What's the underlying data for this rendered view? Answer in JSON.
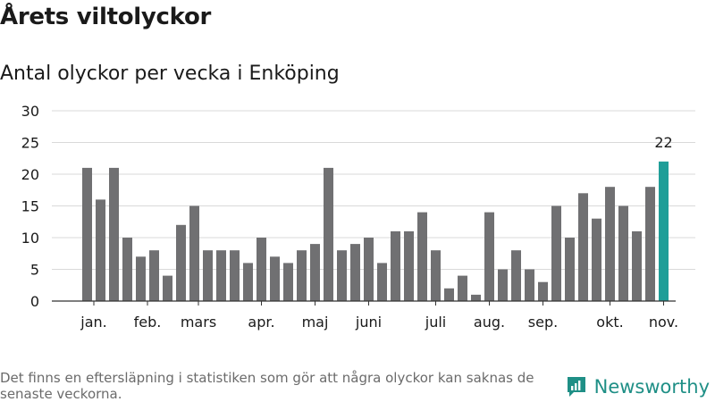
{
  "header": {
    "title": "Årets viltolyckor",
    "subtitle": "Antal olyckor per vecka i Enköping"
  },
  "footer": {
    "note": "Det finns en eftersläpning i statistiken som gör att några olyckor kan saknas de senaste veckorna.",
    "brand": "Newsworthy"
  },
  "colors": {
    "bar": "#707072",
    "highlight": "#1f9e98",
    "grid": "#d9d9d9",
    "axis": "#333333",
    "brand": "#1f8f86"
  },
  "chart_data": {
    "type": "bar",
    "ylim": [
      0,
      30
    ],
    "yticks": [
      0,
      5,
      10,
      15,
      20,
      25,
      30
    ],
    "grid": true,
    "values": [
      21,
      16,
      21,
      10,
      7,
      8,
      4,
      12,
      15,
      8,
      8,
      8,
      6,
      10,
      7,
      6,
      8,
      9,
      21,
      8,
      9,
      10,
      6,
      11,
      11,
      14,
      8,
      2,
      4,
      1,
      14,
      5,
      8,
      5,
      3,
      15,
      10,
      17,
      13,
      18,
      15,
      11,
      18,
      22
    ],
    "highlight_index": 43,
    "annotation": {
      "index": 43,
      "text": "22"
    },
    "month_labels": [
      {
        "label": "jan.",
        "index": 0.5
      },
      {
        "label": "feb.",
        "index": 4.5
      },
      {
        "label": "mars",
        "index": 8.3
      },
      {
        "label": "apr.",
        "index": 13.0
      },
      {
        "label": "maj",
        "index": 17.0
      },
      {
        "label": "juni",
        "index": 21.0
      },
      {
        "label": "juli",
        "index": 26.0
      },
      {
        "label": "aug.",
        "index": 30.0
      },
      {
        "label": "sep.",
        "index": 34.0
      },
      {
        "label": "okt.",
        "index": 39.0
      },
      {
        "label": "nov.",
        "index": 43.0
      }
    ]
  }
}
